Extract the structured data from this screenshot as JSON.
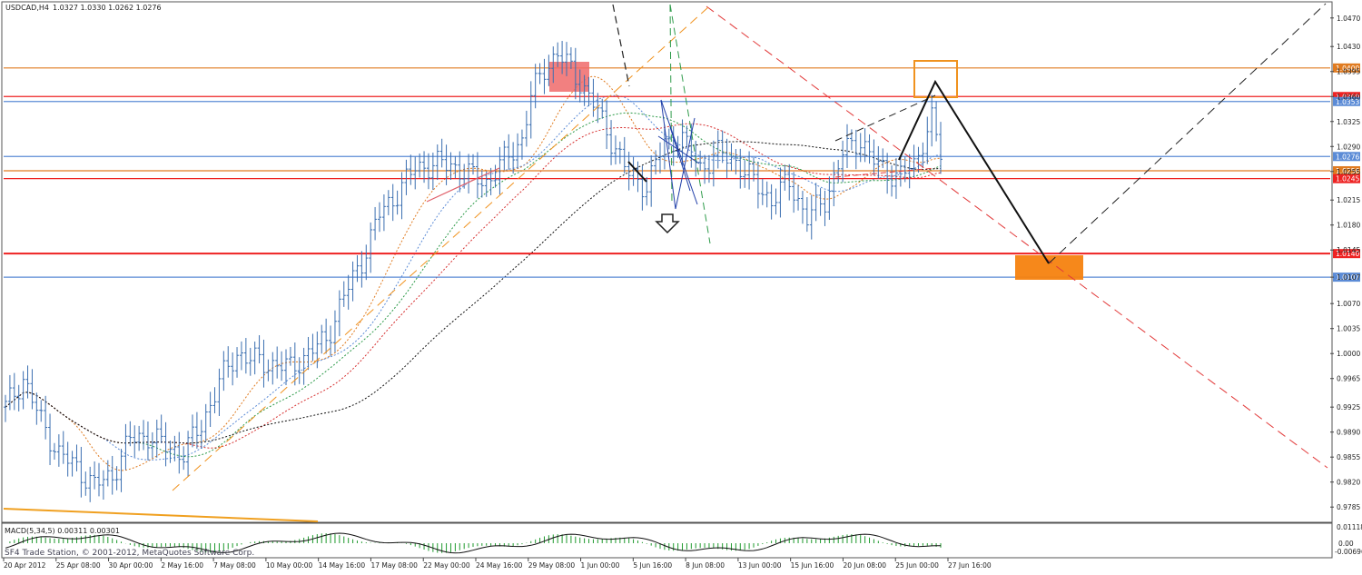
{
  "header": {
    "symbol": "USDCAD,H4",
    "ohlc": "1.0327 1.0330 1.0262 1.0276"
  },
  "macd": {
    "label": "MACD(5,34,5) 0.00311 0.00301",
    "tick_top": "0.01118",
    "tick_zero": "0.00",
    "tick_bottom": "-0.00696"
  },
  "footer": {
    "copyright": "SF4 Trade Station, © 2001-2012, MetaQuotes Software Corp."
  },
  "colors": {
    "bull": "#2f5f9f",
    "candle": "#3a6eb0",
    "resistance_orange": "#e07b20",
    "level_red": "#ee2222",
    "level_blue": "#5b8bd6"
  },
  "chart_data": {
    "type": "candlestick",
    "title": "",
    "symbol": "USDCAD,H4",
    "ylim": [
      0.977,
      1.0485
    ],
    "y_ticks": [
      "1.0470",
      "1.0430",
      "1.0395",
      "1.0360",
      "1.0325",
      "1.0290",
      "1.0255",
      "1.0215",
      "1.0180",
      "1.0145",
      "1.0107",
      "1.0070",
      "1.0035",
      "1.0000",
      "0.9965",
      "0.9925",
      "0.9890",
      "0.9855",
      "0.9820",
      "0.9785"
    ],
    "x_ticks": [
      "20 Apr 2012",
      "25 Apr 08:00",
      "30 Apr 00:00",
      "2 May 16:00",
      "7 May 08:00",
      "10 May 00:00",
      "14 May 16:00",
      "17 May 08:00",
      "22 May 00:00",
      "24 May 16:00",
      "29 May 08:00",
      "1 Jun 00:00",
      "5 Jun 16:00",
      "8 Jun 08:00",
      "13 Jun 00:00",
      "15 Jun 16:00",
      "20 Jun 08:00",
      "25 Jun 00:00",
      "27 Jun 16:00"
    ],
    "price_path": [
      [
        0,
        0.9925
      ],
      [
        4,
        0.9965
      ],
      [
        8,
        0.9905
      ],
      [
        12,
        0.986
      ],
      [
        16,
        0.984
      ],
      [
        20,
        0.9815
      ],
      [
        24,
        0.983
      ],
      [
        28,
        0.988
      ],
      [
        32,
        0.9885
      ],
      [
        36,
        0.987
      ],
      [
        40,
        0.986
      ],
      [
        44,
        0.99
      ],
      [
        48,
        0.996
      ],
      [
        52,
        1.0
      ],
      [
        56,
        0.999
      ],
      [
        60,
        0.9985
      ],
      [
        64,
        0.998
      ],
      [
        68,
        1.0
      ],
      [
        72,
        1.002
      ],
      [
        76,
        1.008
      ],
      [
        80,
        1.013
      ],
      [
        84,
        1.0195
      ],
      [
        88,
        1.0225
      ],
      [
        92,
        1.026
      ],
      [
        96,
        1.0265
      ],
      [
        100,
        1.0265
      ],
      [
        104,
        1.025
      ],
      [
        108,
        1.024
      ],
      [
        112,
        1.027
      ],
      [
        116,
        1.03
      ],
      [
        118,
        1.036
      ],
      [
        121,
        1.04
      ],
      [
        124,
        1.042
      ],
      [
        128,
        1.039
      ],
      [
        132,
        1.035
      ],
      [
        136,
        1.03
      ],
      [
        140,
        1.025
      ],
      [
        144,
        1.0235
      ],
      [
        148,
        1.0295
      ],
      [
        152,
        1.03
      ],
      [
        156,
        1.026
      ],
      [
        160,
        1.028
      ],
      [
        164,
        1.027
      ],
      [
        168,
        1.024
      ],
      [
        172,
        1.0215
      ],
      [
        176,
        1.024
      ],
      [
        180,
        1.019
      ],
      [
        184,
        1.0215
      ],
      [
        188,
        1.028
      ],
      [
        192,
        1.03
      ],
      [
        196,
        1.026
      ],
      [
        200,
        1.025
      ],
      [
        204,
        1.026
      ],
      [
        206,
        1.03
      ],
      [
        208,
        1.033
      ],
      [
        210,
        1.0276
      ]
    ],
    "horizontal_levels": [
      {
        "price": 1.04,
        "label": "1.0400",
        "color": "#e07b20"
      },
      {
        "price": 1.036,
        "label": "1.0360",
        "color": "#ee2222"
      },
      {
        "price": 1.0353,
        "label": "1.0353",
        "color": "#5b8bd6"
      },
      {
        "price": 1.0276,
        "label": "1.0276",
        "color": "#5b8bd6"
      },
      {
        "price": 1.0256,
        "label": "1.0256",
        "color": "#e07b20"
      },
      {
        "price": 1.0245,
        "label": "1.0245",
        "color": "#ee2222"
      },
      {
        "price": 1.014,
        "label": "1.0140",
        "color": "#ee2222"
      },
      {
        "price": 1.0107,
        "label": "1.0107",
        "color": "#5b8bd6"
      }
    ]
  }
}
